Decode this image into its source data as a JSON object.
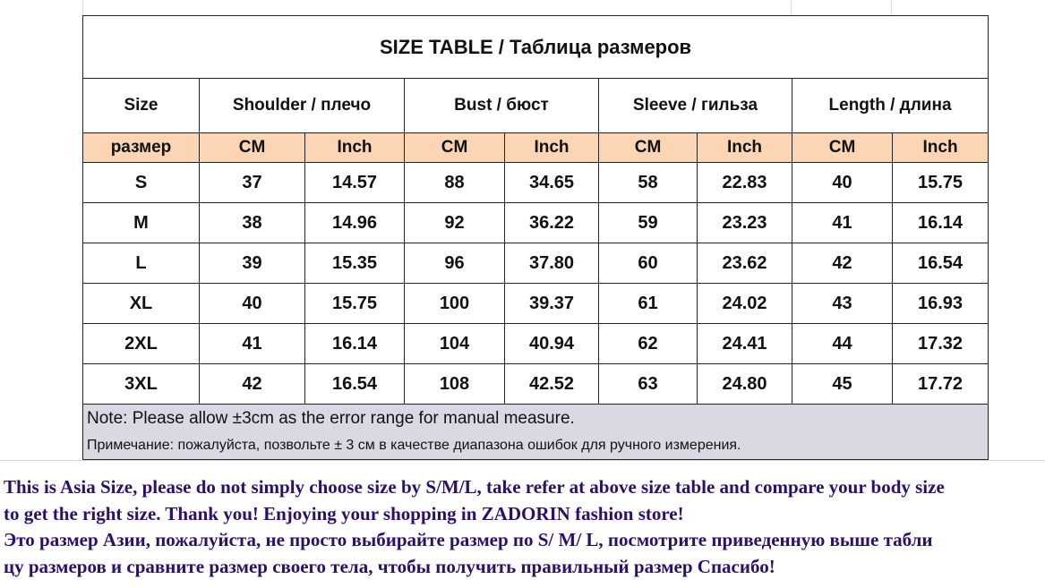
{
  "title": "SIZE TABLE  / Таблица размеров",
  "headers": {
    "size": "Size",
    "shoulder": "Shoulder / плечо",
    "bust": "Bust / бюст",
    "sleeve": "Sleeve / гильза",
    "length": "Length / длина"
  },
  "units": [
    "размер",
    "CM",
    "Inch",
    "CM",
    "Inch",
    "CM",
    "Inch",
    "CM",
    "Inch"
  ],
  "rows": [
    [
      "S",
      "37",
      "14.57",
      "88",
      "34.65",
      "58",
      "22.83",
      "40",
      "15.75"
    ],
    [
      "M",
      "38",
      "14.96",
      "92",
      "36.22",
      "59",
      "23.23",
      "41",
      "16.14"
    ],
    [
      "L",
      "39",
      "15.35",
      "96",
      "37.80",
      "60",
      "23.62",
      "42",
      "16.54"
    ],
    [
      "XL",
      "40",
      "15.75",
      "100",
      "39.37",
      "61",
      "24.02",
      "43",
      "16.93"
    ],
    [
      "2XL",
      "41",
      "16.14",
      "104",
      "40.94",
      "62",
      "24.41",
      "44",
      "17.32"
    ],
    [
      "3XL",
      "42",
      "16.54",
      "108",
      "42.52",
      "63",
      "24.80",
      "45",
      "17.72"
    ]
  ],
  "note_en": "Note: Please allow ±3cm as the error range for manual measure.",
  "note_ru": "Примечание: пожалуйста, позвольте ± 3 см в качестве диапазона ошибок для ручного измерения.",
  "promo": {
    "line1": "This is Asia Size, please do not simply choose size by S/M/L, take refer at above size table and compare your body size",
    "line2": "to get the right size. Thank you!  Enjoying your shopping in ZADORIN fashion store!",
    "line3": "Это размер Азии, пожалуйста, не просто выбирайте размер по S/ M/ L, посмотрите приведенную выше табли",
    "line4": "цу размеров и сравните размер своего тела, чтобы получить правильный размер Спасибо!"
  },
  "colors": {
    "unit_row_bg": "#fcd5b4",
    "note_bg": "#d9d9e3",
    "promo_text": "#2b0f6b"
  }
}
